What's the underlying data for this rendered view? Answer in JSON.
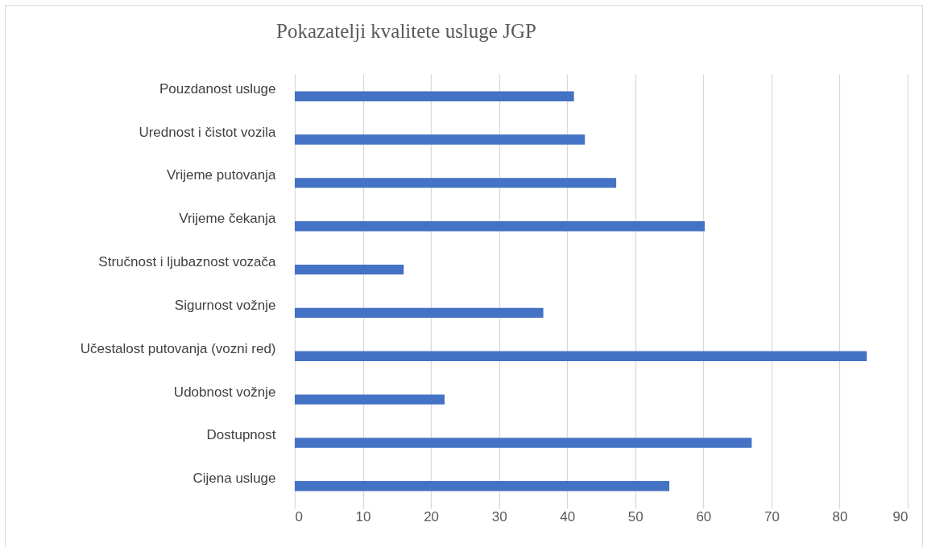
{
  "chart_data": {
    "type": "bar",
    "orientation": "horizontal",
    "title": "Pokazatelji kvalitete usluge JGP",
    "categories": [
      "Pouzdanost usluge",
      "Urednost i čistot vozila",
      "Vrijeme putovanja",
      "Vrijeme čekanja",
      "Stručnost i ljubaznost vozača",
      "Sigurnost vožnje",
      "Učestalost putovanja (vozni red)",
      "Udobnost vožnje",
      "Dostupnost",
      "Cijena usluge"
    ],
    "values": [
      41,
      42.6,
      47.2,
      60.2,
      16,
      36.5,
      84,
      22,
      67.1,
      55
    ],
    "color": "#4472c4",
    "xlim": [
      0,
      90
    ],
    "xticks": [
      0,
      10,
      20,
      30,
      40,
      50,
      60,
      70,
      80,
      90
    ],
    "grid": "x"
  }
}
